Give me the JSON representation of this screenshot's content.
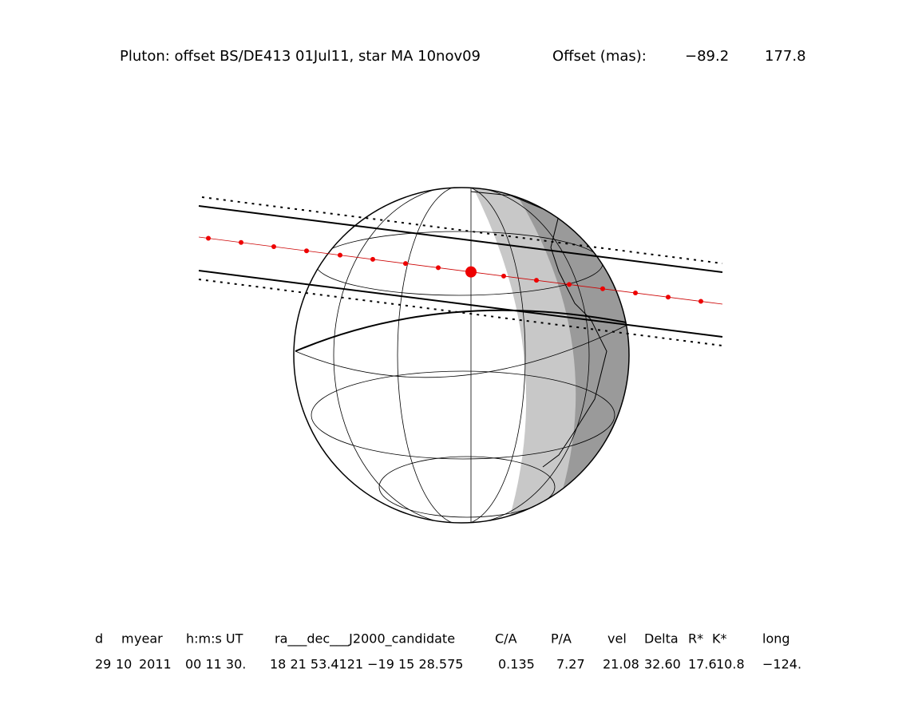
{
  "header": {
    "title": "Pluton: offset BS/DE413 01Jul11, star MA 10nov09",
    "offset_label": "Offset (mas):",
    "offsets": [
      "−89.2",
      "177.8"
    ]
  },
  "table": {
    "columns": [
      "d",
      "m",
      "year",
      "h:m:s UT",
      "ra___dec___J2000_candidate",
      "C/A",
      "P/A",
      "vel",
      "Delta",
      "R*",
      "K*",
      "long"
    ],
    "values": [
      "29",
      "10",
      "2011",
      "00 11 30.",
      "18 21 53.4121 −19 15 28.575",
      "0.135",
      "7.27",
      "21.08",
      "32.60",
      "17.6",
      "10.8",
      "−124."
    ]
  }
}
